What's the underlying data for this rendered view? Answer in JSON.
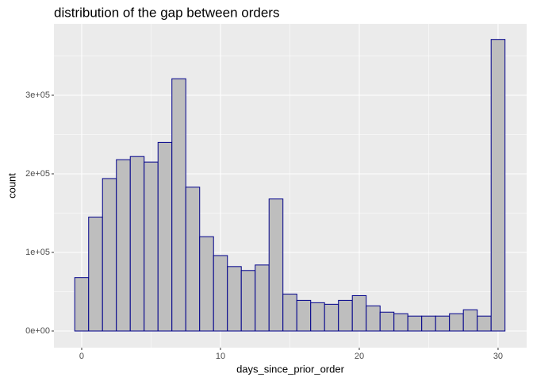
{
  "chart_data": {
    "type": "histogram",
    "title": "distribution of the gap between orders",
    "x_label": "days_since_prior_order",
    "y_label": "count",
    "bins": [
      -0.5,
      0.5,
      1.5,
      2.5,
      3.5,
      4.5,
      5.5,
      6.5,
      7.5,
      8.5,
      9.5,
      10.5,
      11.5,
      12.5,
      13.5,
      14.5,
      15.5,
      16.5,
      17.5,
      18.5,
      19.5,
      20.5,
      21.5,
      22.5,
      23.5,
      24.5,
      25.5,
      26.5,
      27.5,
      28.5,
      29.5,
      30.5
    ],
    "counts": [
      68000,
      145000,
      194000,
      218000,
      222000,
      215000,
      240000,
      321000,
      183000,
      120000,
      96000,
      82000,
      77000,
      84000,
      168000,
      47000,
      39000,
      36000,
      34000,
      39000,
      45000,
      32000,
      24000,
      22000,
      19000,
      19000,
      19000,
      22000,
      27000,
      19000,
      371000
    ],
    "fill": "#bebebe",
    "edge_color": "#00008b",
    "xlim": [
      -2,
      32.06
    ],
    "ylim": [
      -21200,
      390900
    ],
    "xticks": [
      0,
      10,
      20,
      30
    ],
    "yticks": [
      {
        "value": 0,
        "label": "0e+00"
      },
      {
        "value": 100000,
        "label": "1e+05"
      },
      {
        "value": 200000,
        "label": "2e+05"
      },
      {
        "value": 300000,
        "label": "3e+05"
      }
    ],
    "grid": true
  }
}
